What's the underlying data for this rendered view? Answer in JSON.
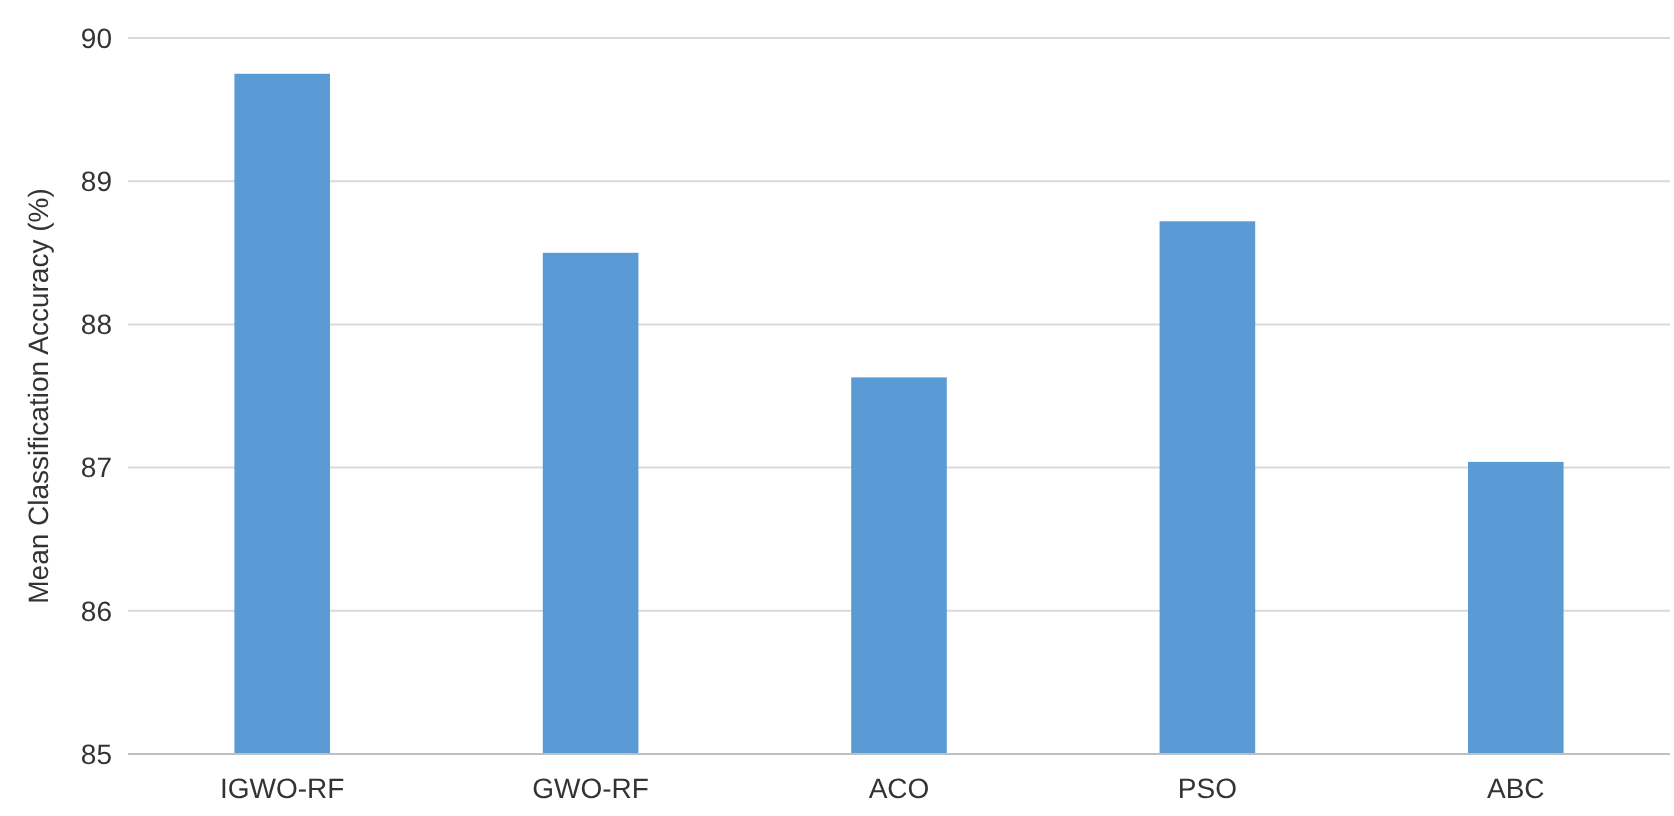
{
  "chart_data": {
    "type": "bar",
    "ylabel": "Mean Classification Accuracy (%)",
    "categories": [
      "IGWO-RF",
      "GWO-RF",
      "ACO",
      "PSO",
      "ABC"
    ],
    "values": [
      89.75,
      88.5,
      87.63,
      88.72,
      87.04
    ],
    "color": "#5b9bd5",
    "ylim": [
      85,
      90
    ],
    "yticks": [
      85,
      86,
      87,
      88,
      89,
      90
    ],
    "grid": "y"
  }
}
